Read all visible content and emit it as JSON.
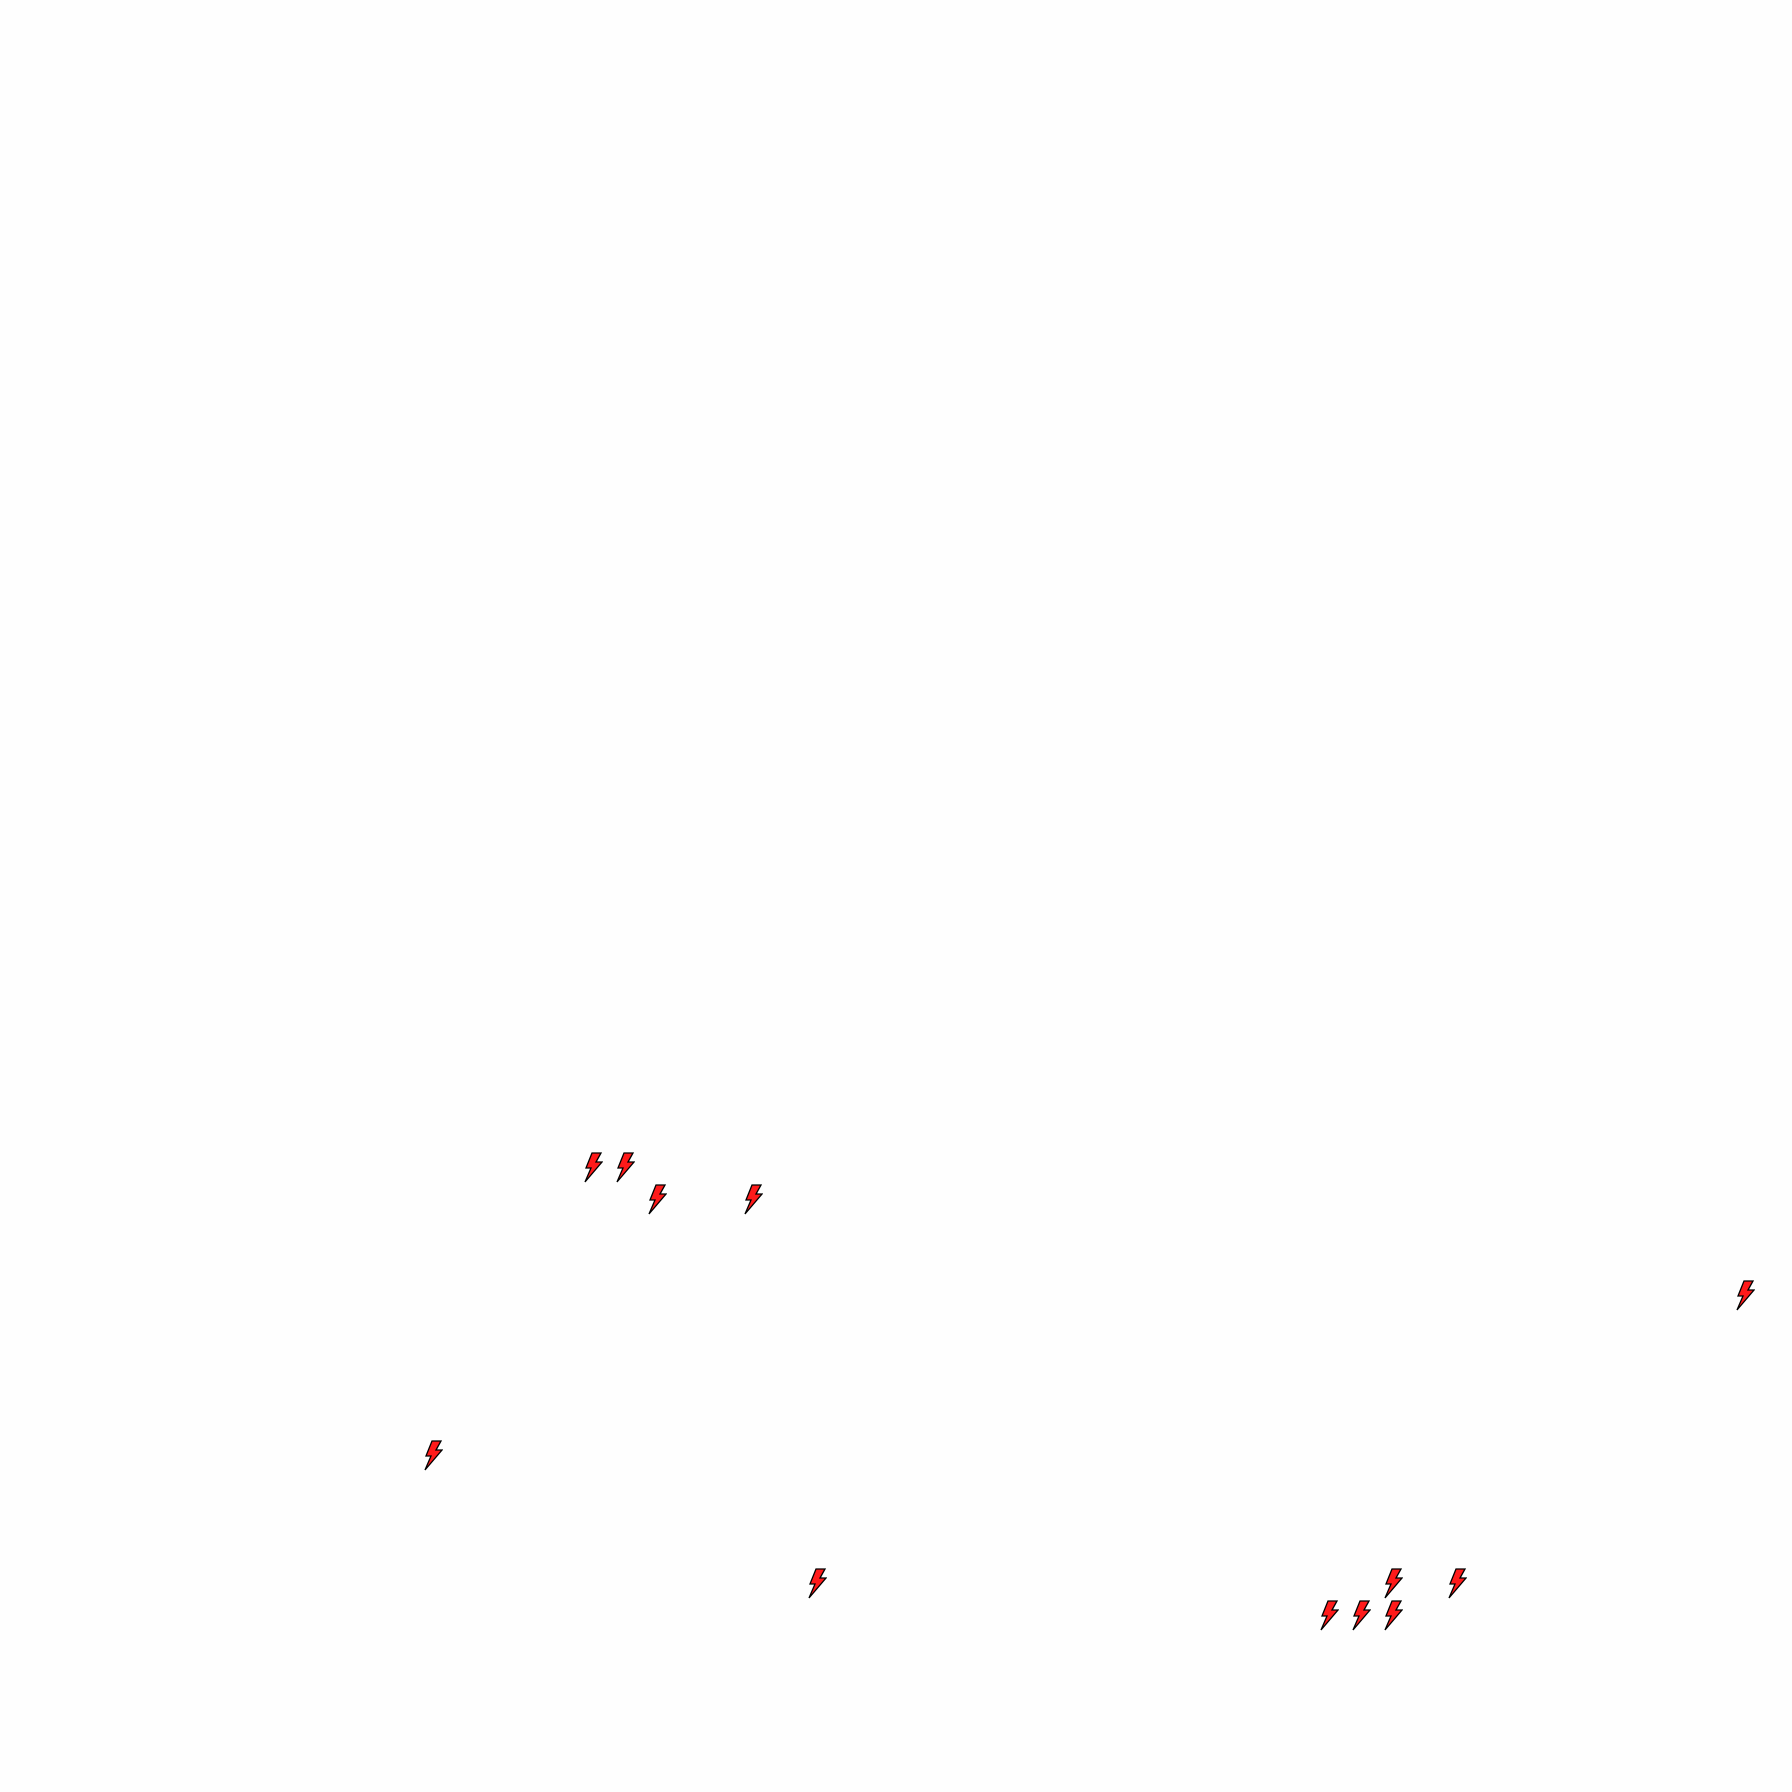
{
  "scene": {
    "background": "#fefefe",
    "item_icon": "lightning-bolt-icon",
    "item_color": "#ff1a1a",
    "outline_color": "#000000",
    "grid_cell": 32,
    "items": [
      {
        "col": 18,
        "row": 36
      },
      {
        "col": 19,
        "row": 36
      },
      {
        "col": 20,
        "row": 37
      },
      {
        "col": 23,
        "row": 37
      },
      {
        "col": 54,
        "row": 40
      },
      {
        "col": 13,
        "row": 45
      },
      {
        "col": 25,
        "row": 49
      },
      {
        "col": 43,
        "row": 49
      },
      {
        "col": 45,
        "row": 49
      },
      {
        "col": 41,
        "row": 50
      },
      {
        "col": 42,
        "row": 50
      },
      {
        "col": 43,
        "row": 50
      }
    ]
  }
}
